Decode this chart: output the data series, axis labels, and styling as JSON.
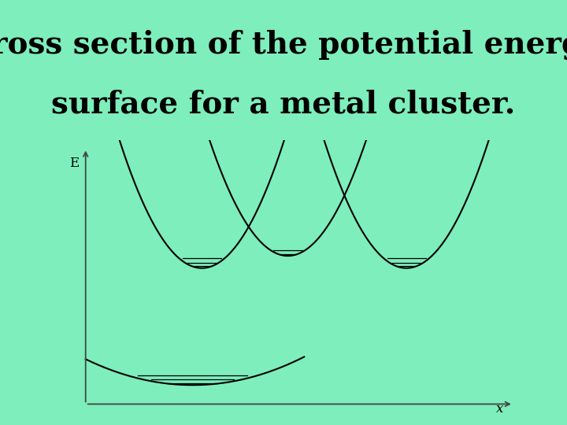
{
  "title_line1": "Cross section of the potential energy",
  "title_line2": "surface for a metal cluster.",
  "title_fontsize": 28,
  "title_color": "#000000",
  "bg_color": "#7DEEBC",
  "plot_bg_color": "#FFFFFF",
  "curve_color": "#000000",
  "curve_linewidth": 1.5,
  "xlabel": "x",
  "ylabel": "E"
}
